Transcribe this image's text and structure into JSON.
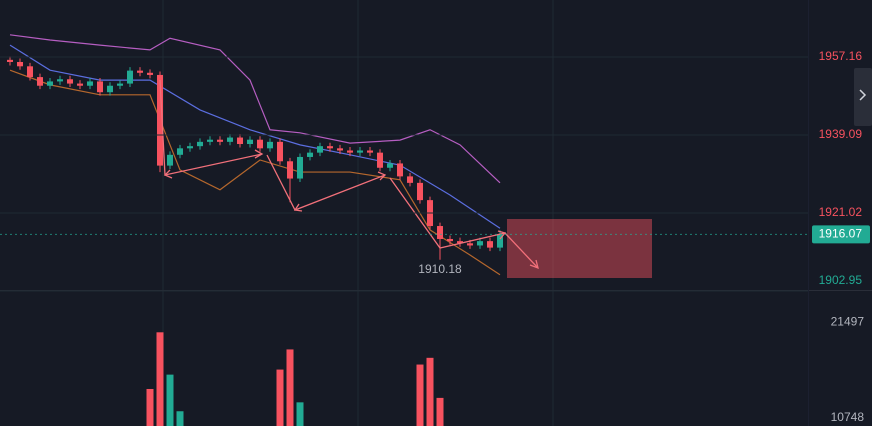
{
  "chart_data": {
    "type": "candlestick",
    "open": [
      1956.5,
      1956.0,
      1955.0,
      1952.5,
      1950.5,
      1951.5,
      1952.0,
      1951.0,
      1950.5,
      1951.5,
      1949.0,
      1950.5,
      1951.0,
      1954.0,
      1953.5,
      1953.0,
      1932.0,
      1934.5,
      1936.0,
      1936.5,
      1937.5,
      1938.0,
      1937.5,
      1938.5,
      1937.0,
      1938.0,
      1936.0,
      1937.5,
      1933.0,
      1929.0,
      1934.0,
      1935.0,
      1936.5,
      1936.0,
      1935.5,
      1935.0,
      1935.5,
      1935.0,
      1931.5,
      1932.5,
      1929.5,
      1928.0,
      1924.0,
      1918.0,
      1915.0,
      1914.5,
      1914.0,
      1913.5,
      1914.5,
      1913.0
    ],
    "high": [
      1957.3,
      1956.8,
      1955.8,
      1953.3,
      1952.3,
      1952.8,
      1952.8,
      1951.8,
      1952.3,
      1952.3,
      1951.3,
      1951.8,
      1954.8,
      1954.8,
      1954.3,
      1953.8,
      1935.3,
      1936.8,
      1937.3,
      1938.3,
      1938.8,
      1938.8,
      1939.3,
      1939.3,
      1938.8,
      1938.8,
      1938.3,
      1938.3,
      1933.8,
      1934.8,
      1935.8,
      1937.3,
      1937.3,
      1936.8,
      1936.3,
      1936.3,
      1936.3,
      1935.8,
      1933.3,
      1933.3,
      1930.3,
      1928.8,
      1924.8,
      1918.8,
      1915.8,
      1915.3,
      1914.8,
      1915.3,
      1915.3,
      1917.0
    ],
    "low": [
      1955.2,
      1954.2,
      1951.7,
      1949.7,
      1949.7,
      1950.7,
      1950.2,
      1949.7,
      1949.7,
      1948.2,
      1948.2,
      1949.7,
      1950.2,
      1952.7,
      1952.2,
      1930.5,
      1931.2,
      1933.7,
      1935.2,
      1935.7,
      1936.7,
      1936.7,
      1936.7,
      1936.2,
      1936.2,
      1935.2,
      1935.2,
      1932.2,
      1923.5,
      1928.2,
      1933.2,
      1934.2,
      1935.2,
      1934.7,
      1934.2,
      1934.2,
      1934.2,
      1930.7,
      1930.7,
      1928.7,
      1927.2,
      1923.2,
      1917.2,
      1910.18,
      1913.7,
      1913.2,
      1912.7,
      1912.7,
      1912.2,
      1912.2
    ],
    "close": [
      1956.0,
      1955.0,
      1952.5,
      1950.5,
      1951.5,
      1952.0,
      1951.0,
      1950.5,
      1951.5,
      1949.0,
      1950.5,
      1951.0,
      1954.0,
      1953.5,
      1953.0,
      1932.0,
      1934.5,
      1936.0,
      1936.5,
      1937.5,
      1938.0,
      1937.5,
      1938.5,
      1937.0,
      1938.0,
      1936.0,
      1937.5,
      1933.0,
      1929.0,
      1934.0,
      1935.0,
      1936.5,
      1936.0,
      1935.5,
      1935.0,
      1935.5,
      1935.0,
      1931.5,
      1932.5,
      1929.5,
      1928.0,
      1924.0,
      1918.0,
      1915.0,
      1914.5,
      1914.0,
      1913.5,
      1914.5,
      1913.0,
      1916.07
    ],
    "volume": [
      8000,
      8000,
      8500,
      8000,
      8000,
      8000,
      8000,
      8000,
      8000,
      8500,
      8000,
      8000,
      8500,
      8000,
      14000,
      20366,
      15613,
      11500,
      8500,
      8000,
      8000,
      8000,
      8000,
      8000,
      8000,
      8500,
      8000,
      16180,
      18442,
      12500,
      9000,
      8000,
      8000,
      8000,
      8000,
      8000,
      8000,
      9000,
      8500,
      9000,
      9500,
      16745,
      17500,
      13000,
      9000,
      8500,
      8000,
      8000,
      8000,
      9000
    ],
    "lines": [
      {
        "color": "#b65ec2",
        "x": [
          0,
          4,
          9,
          14,
          16,
          21,
          24,
          26,
          29,
          34,
          39,
          42,
          45,
          49
        ],
        "values": [
          1962.3,
          1961.1,
          1959.9,
          1958.8,
          1961.5,
          1958.8,
          1951.8,
          1940.3,
          1939.6,
          1937.2,
          1937.9,
          1940.3,
          1936.8,
          1928.0
        ]
      },
      {
        "color": "#5b6ee0",
        "x": [
          0,
          4,
          9,
          14,
          19,
          24,
          29,
          34,
          39,
          44,
          49
        ],
        "values": [
          1959.9,
          1954.1,
          1951.8,
          1951.8,
          1944.9,
          1940.3,
          1936.8,
          1934.5,
          1932.1,
          1925.2,
          1917.5
        ]
      },
      {
        "color": "#b5672d",
        "x": [
          0,
          4,
          9,
          14,
          17,
          21,
          25,
          29,
          34,
          39,
          42,
          46,
          49
        ],
        "values": [
          1954.1,
          1950.7,
          1948.4,
          1948.4,
          1931.0,
          1926.4,
          1933.3,
          1930.5,
          1930.5,
          1928.7,
          1917.1,
          1911.3,
          1906.7
        ]
      }
    ],
    "up_color": "#22ab94",
    "down_color": "#f7525f",
    "ylim": [
      1902.95,
      1970.36
    ],
    "yticks": [
      1957.16,
      1939.09,
      1921.02,
      1902.95
    ],
    "volume_ylim": [
      9843,
      25005
    ],
    "volume_yticks": [
      21497,
      10748
    ],
    "grid": true
  }
}
